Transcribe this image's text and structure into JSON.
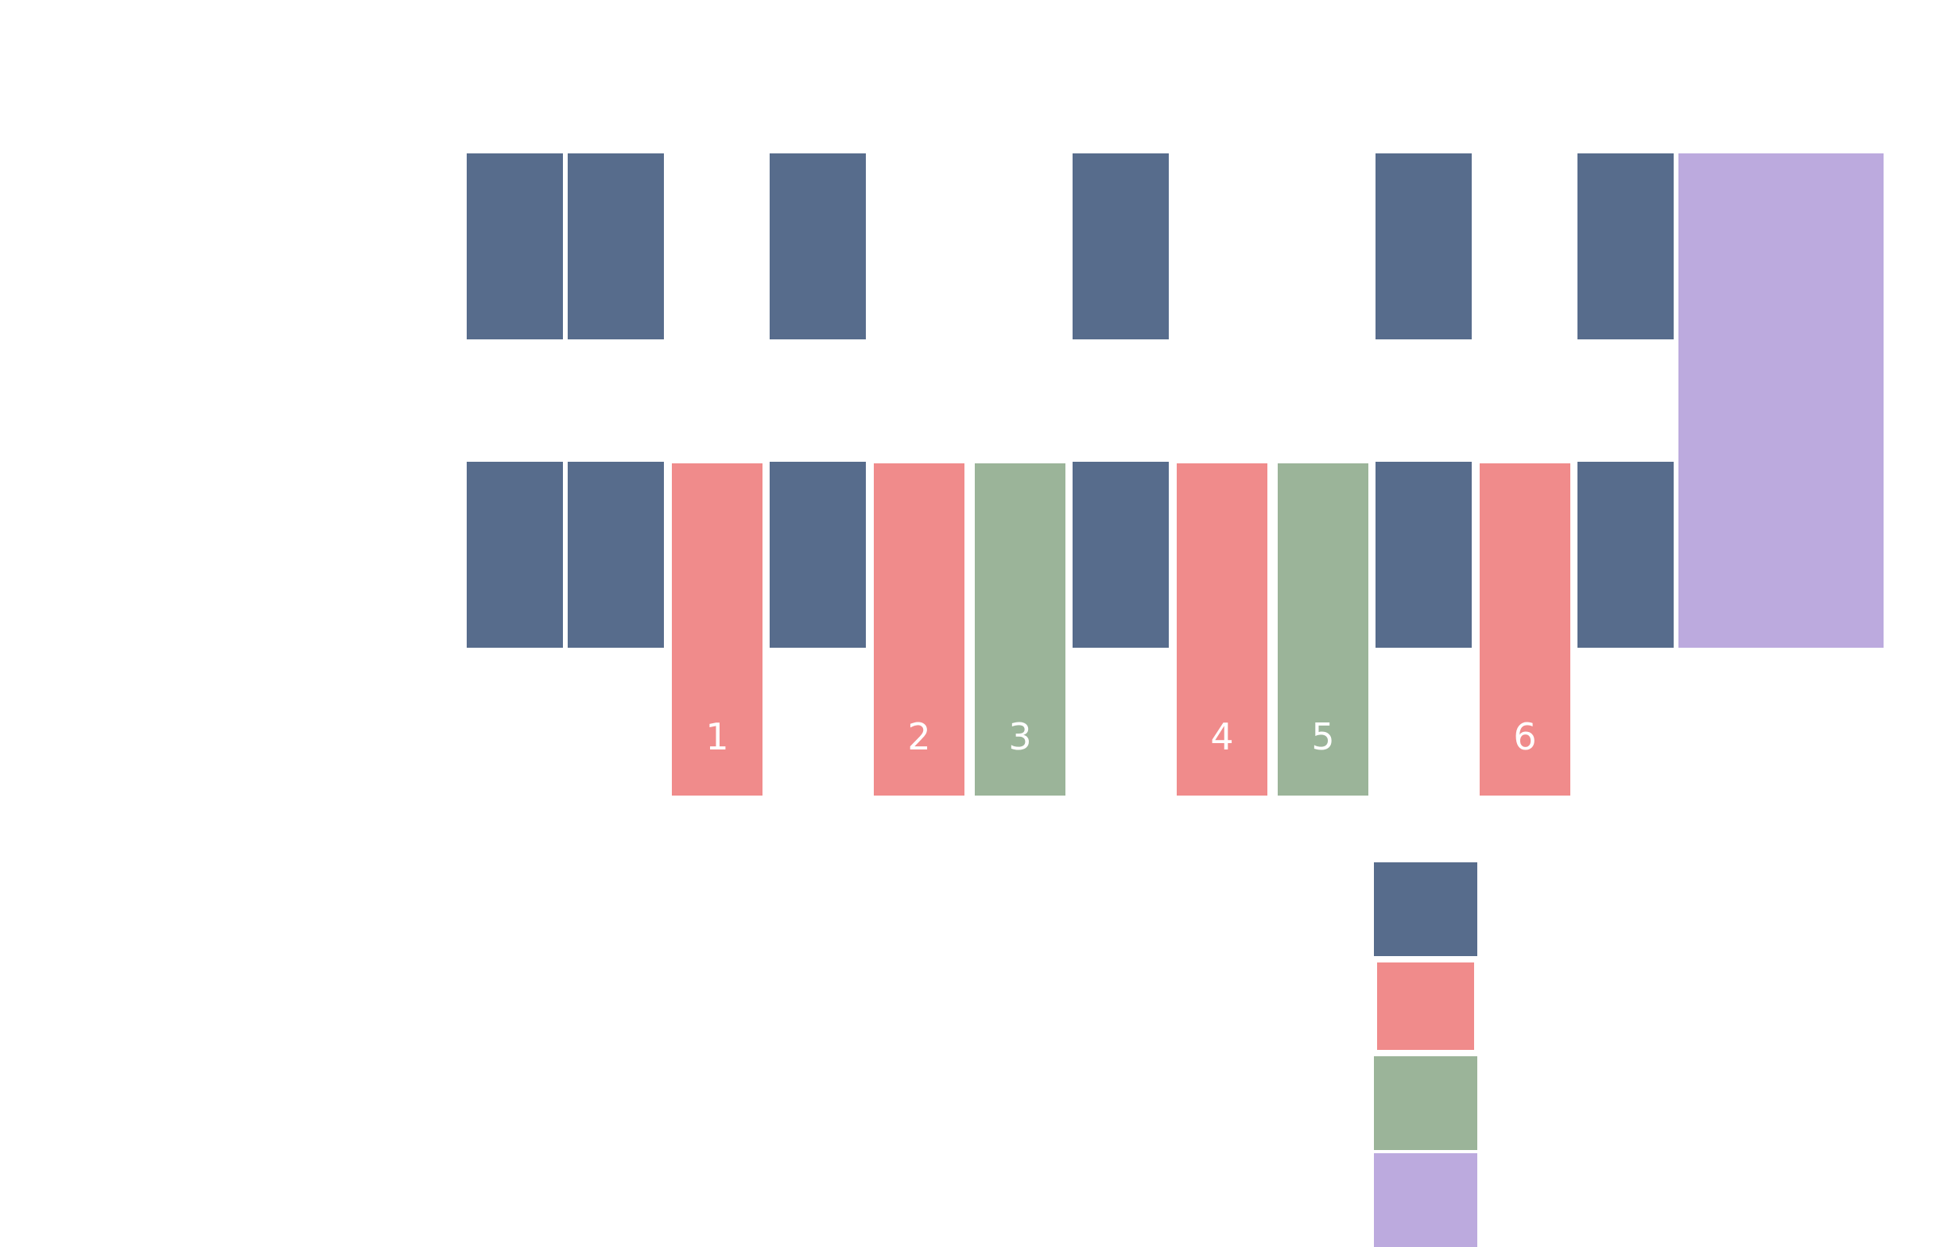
{
  "colors": {
    "slate": "#576c8c",
    "coral": "#f08b8b",
    "sage": "#9bb499",
    "lavender": "#bcaade"
  },
  "top_row": [
    "slate",
    "slate",
    null,
    "slate",
    null,
    null,
    "slate",
    null,
    null,
    "slate",
    null,
    "slate"
  ],
  "bottom_row": [
    {
      "color": "slate"
    },
    {
      "color": "slate"
    },
    {
      "color": "coral",
      "label": "1"
    },
    {
      "color": "slate"
    },
    {
      "color": "coral",
      "label": "2"
    },
    {
      "color": "sage",
      "label": "3"
    },
    {
      "color": "slate"
    },
    {
      "color": "coral",
      "label": "4"
    },
    {
      "color": "sage",
      "label": "5"
    },
    {
      "color": "slate"
    },
    {
      "color": "coral",
      "label": "6"
    },
    {
      "color": "slate"
    }
  ],
  "tall_block": {
    "color": "lavender"
  },
  "legend": [
    "slate",
    "coral",
    "sage",
    "lavender"
  ]
}
